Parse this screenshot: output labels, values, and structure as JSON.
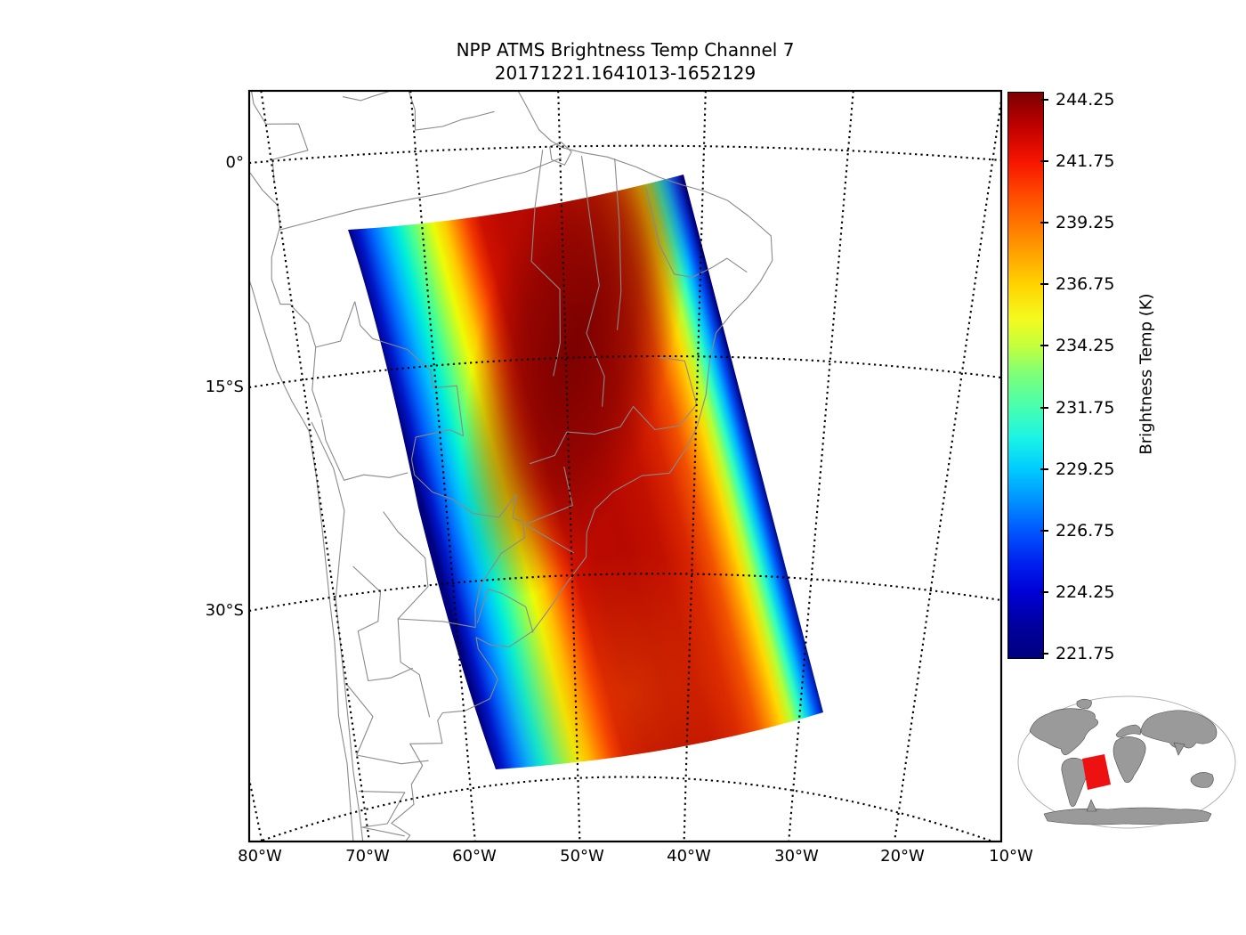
{
  "figure": {
    "title_line1": "NPP ATMS Brightness Temp Channel 7",
    "title_line2": "20171221.1641013-1652129"
  },
  "axes": {
    "lat_tick_labels": [
      "0°",
      "15°S",
      "30°S"
    ],
    "lon_tick_labels": [
      "80°W",
      "70°W",
      "60°W",
      "50°W",
      "40°W",
      "30°W",
      "20°W",
      "10°W"
    ]
  },
  "colorbar": {
    "axis_label": "Brightness Temp (K)",
    "tick_labels": [
      "244.25",
      "241.75",
      "239.25",
      "236.75",
      "234.25",
      "231.75",
      "229.25",
      "226.75",
      "224.25",
      "221.75"
    ],
    "top_color": "#7f0000",
    "bottom_color": "#000080"
  },
  "inset": {
    "land_color": "#9a9a9a",
    "highlight_color": "#ee1111"
  },
  "chart_data": {
    "type": "heatmap",
    "title": "NPP ATMS Brightness Temp Channel 7",
    "subtitle": "20171221.1641013-1652129",
    "colorbar_label": "Brightness Temp (K)",
    "colorbar_ticks_K": [
      244.25,
      241.75,
      239.25,
      236.75,
      234.25,
      231.75,
      229.25,
      226.75,
      224.25,
      221.75
    ],
    "value_range_K": [
      221.75,
      244.25
    ],
    "colormap": "jet",
    "x_tick_labels": [
      "80°W",
      "70°W",
      "60°W",
      "50°W",
      "40°W",
      "30°W",
      "20°W",
      "10°W"
    ],
    "y_tick_labels": [
      "0°",
      "15°S",
      "30°S"
    ],
    "grid": "dotted graticule, 10 deg longitude x 15 deg latitude",
    "legend_position": "right vertical colorbar",
    "swath_corners_approx_lon_lat": [
      [
        -64,
        -6
      ],
      [
        -41,
        -2
      ],
      [
        -28,
        -40
      ],
      [
        -58,
        -44
      ]
    ],
    "hot_center_longitude_deg_w": 45,
    "cross_track_profile_K": [
      222,
      224.5,
      228,
      232,
      236,
      240,
      243.5,
      244.2,
      244.0,
      243.5,
      241,
      237,
      232,
      227,
      222
    ],
    "map_region": "South America",
    "inset": "world locator map with red swath footprint over South America"
  }
}
